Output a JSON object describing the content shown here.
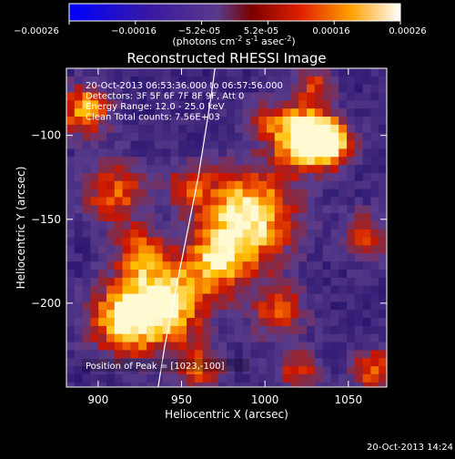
{
  "chart_data": {
    "type": "heatmap",
    "title": "Reconstructed RHESSI Image",
    "xlabel": "Heliocentric X (arcsec)",
    "ylabel": "Heliocentric Y (arcsec)",
    "xlim": [
      881,
      1073
    ],
    "ylim": [
      -250,
      -60
    ],
    "xticks": [
      900,
      950,
      1000,
      1050
    ],
    "yticks": [
      -100,
      -150,
      -200
    ],
    "colorbar": {
      "range": [
        -0.00026,
        0.00026
      ],
      "ticks": [
        "-0.00026",
        "-0.00016",
        "-5.2e-05",
        "5.2e-05",
        "0.00016",
        "0.00026"
      ],
      "label_main": "(photons cm",
      "label_sup1": "-2",
      "label_mid": " s",
      "label_sup2": "-1",
      "label_end": " asec",
      "label_sup3": "-2",
      "label_close": ")"
    },
    "annotations": [
      "20-Oct-2013 06:53:36.000 to 06:57:56.000",
      "Detectors: 3F 5F 6F 7F 8F 9F, Att 0",
      "Energy Range: 12.0 - 25.0 keV",
      "Clean     Total counts: 7.56E+03"
    ],
    "peak_label": "Position of Peak = [1023,-100]",
    "peak": {
      "x": 1023,
      "y": -100
    },
    "limb_curve": [
      {
        "x": 936,
        "y": -250
      },
      {
        "x": 940,
        "y": -225
      },
      {
        "x": 945,
        "y": -200
      },
      {
        "x": 950,
        "y": -175
      },
      {
        "x": 955,
        "y": -150
      },
      {
        "x": 960,
        "y": -125
      },
      {
        "x": 964,
        "y": -100
      },
      {
        "x": 968,
        "y": -75
      },
      {
        "x": 970,
        "y": -60
      }
    ],
    "sources": [
      {
        "x": 1022,
        "y": -100,
        "w": 1.0,
        "s": 13
      },
      {
        "x": 1038,
        "y": -105,
        "w": 0.85,
        "s": 10
      },
      {
        "x": 990,
        "y": -148,
        "w": 0.95,
        "s": 20
      },
      {
        "x": 955,
        "y": -130,
        "w": 0.5,
        "s": 9
      },
      {
        "x": 972,
        "y": -175,
        "w": 0.6,
        "s": 14
      },
      {
        "x": 940,
        "y": -200,
        "w": 0.9,
        "s": 18
      },
      {
        "x": 915,
        "y": -210,
        "w": 0.75,
        "s": 15
      },
      {
        "x": 910,
        "y": -135,
        "w": 0.6,
        "s": 14
      },
      {
        "x": 892,
        "y": -85,
        "w": 0.75,
        "s": 11
      },
      {
        "x": 925,
        "y": -170,
        "w": 0.55,
        "s": 10
      },
      {
        "x": 1060,
        "y": -160,
        "w": 0.55,
        "s": 10
      },
      {
        "x": 1008,
        "y": -205,
        "w": 0.55,
        "s": 12
      },
      {
        "x": 1020,
        "y": -240,
        "w": 0.5,
        "s": 9
      },
      {
        "x": 1065,
        "y": -240,
        "w": 0.65,
        "s": 9
      },
      {
        "x": 1030,
        "y": -70,
        "w": 0.45,
        "s": 8
      },
      {
        "x": 960,
        "y": -240,
        "w": 0.55,
        "s": 10
      },
      {
        "x": 1000,
        "y": -90,
        "w": 0.35,
        "s": 8
      }
    ]
  },
  "footer": {
    "timestamp": "20-Oct-2013 14:24"
  }
}
